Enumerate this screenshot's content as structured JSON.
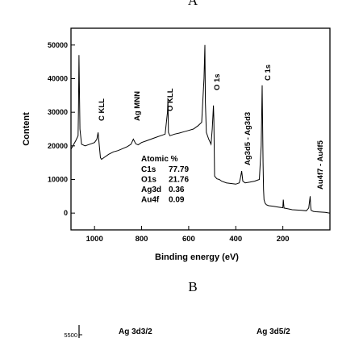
{
  "figure": {
    "panel_a_label": "A",
    "panel_b_label": "B",
    "panel_b_peak_left": "Ag 3d3/2",
    "panel_b_peak_right": "Ag 3d5/2",
    "panel_b_ytick_top": "5500"
  },
  "chart_data": {
    "type": "line",
    "xlabel": "Binding energy (eV)",
    "ylabel": "Content",
    "xlim": [
      1100,
      0
    ],
    "ylim": [
      -5000,
      55000
    ],
    "x_ticks": [
      1000,
      800,
      600,
      400,
      200
    ],
    "y_ticks": [
      0,
      10000,
      20000,
      30000,
      40000,
      50000
    ],
    "grid": false,
    "series": [
      {
        "x": [
          1100,
          1080,
          1070,
          1068,
          1066,
          1062,
          1055,
          1040,
          1020,
          1000,
          990,
          985,
          975,
          970,
          960,
          940,
          920,
          900,
          880,
          860,
          845,
          835,
          825,
          815,
          800,
          780,
          760,
          740,
          720,
          700,
          690,
          688,
          686,
          680,
          660,
          640,
          620,
          600,
          580,
          560,
          545,
          535,
          531,
          529,
          525,
          515,
          505,
          500,
          495,
          493,
          490,
          484,
          480,
          470,
          460,
          440,
          420,
          400,
          385,
          380,
          375,
          370,
          360,
          340,
          320,
          300,
          292,
          288,
          284,
          282,
          280,
          276,
          270,
          260,
          240,
          220,
          200,
          198,
          195,
          180,
          160,
          140,
          120,
          100,
          90,
          84,
          82,
          80,
          70,
          60,
          40,
          20,
          10,
          0
        ],
        "y": [
          19000,
          21500,
          23000,
          31000,
          47000,
          25000,
          20500,
          20000,
          20500,
          21000,
          22000,
          24000,
          16500,
          16000,
          16500,
          17500,
          18200,
          18600,
          19200,
          19800,
          20500,
          22000,
          20600,
          20300,
          21000,
          21500,
          22000,
          22500,
          23000,
          23500,
          30000,
          34000,
          24000,
          23000,
          23500,
          23800,
          24200,
          24600,
          25000,
          26000,
          27000,
          40000,
          50000,
          33000,
          24000,
          22000,
          20500,
          25000,
          32000,
          28000,
          11000,
          10500,
          10200,
          10000,
          9500,
          9000,
          8800,
          8600,
          9000,
          10500,
          12500,
          9500,
          9000,
          9200,
          9500,
          10000,
          20000,
          38000,
          15000,
          7000,
          4000,
          3000,
          2500,
          2200,
          2000,
          1800,
          1600,
          4000,
          1500,
          1300,
          1000,
          900,
          800,
          700,
          1500,
          5000,
          2000,
          800,
          500,
          400,
          300,
          200,
          100,
          0
        ]
      }
    ],
    "annotations": [
      "C KLL",
      "Ag MNN",
      "O KLL",
      "O 1s",
      "Ag3d5 - Ag3d3",
      "C 1s",
      "Au4f7 - Au4f5"
    ],
    "table": {
      "title": "Atomic %",
      "rows": [
        {
          "label": "C1s",
          "value": "77.79"
        },
        {
          "label": "O1s",
          "value": "21.76"
        },
        {
          "label": "Ag3d",
          "value": "0.36"
        },
        {
          "label": "Au4f",
          "value": "0.09"
        }
      ]
    }
  }
}
